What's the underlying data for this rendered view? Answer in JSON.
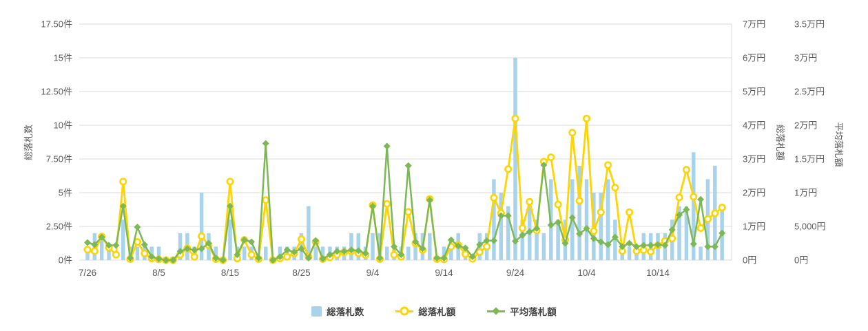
{
  "chart_data": {
    "type": "bar",
    "combo": "bar + two line series on secondary axes",
    "title": "",
    "grid": {
      "horizontal": true,
      "vertical": false,
      "color": "#DBDBDB",
      "right_border_color": "#DBDBDB"
    },
    "background": "#ffffff",
    "axis_label_color": "#595959",
    "categories": [
      "7/26",
      "7/27",
      "7/28",
      "7/29",
      "7/30",
      "7/31",
      "8/1",
      "8/2",
      "8/3",
      "8/4",
      "8/5",
      "8/6",
      "8/7",
      "8/8",
      "8/9",
      "8/10",
      "8/11",
      "8/12",
      "8/13",
      "8/14",
      "8/15",
      "8/16",
      "8/17",
      "8/18",
      "8/19",
      "8/20",
      "8/21",
      "8/22",
      "8/23",
      "8/24",
      "8/25",
      "8/26",
      "8/27",
      "8/28",
      "8/29",
      "8/30",
      "8/31",
      "9/1",
      "9/2",
      "9/3",
      "9/4",
      "9/5",
      "9/6",
      "9/7",
      "9/8",
      "9/9",
      "9/10",
      "9/11",
      "9/12",
      "9/13",
      "9/14",
      "9/15",
      "9/16",
      "9/17",
      "9/18",
      "9/19",
      "9/20",
      "9/21",
      "9/22",
      "9/23",
      "9/24",
      "9/25",
      "9/26",
      "9/27",
      "9/28",
      "9/29",
      "9/30",
      "10/1",
      "10/2",
      "10/3",
      "10/4",
      "10/5",
      "10/6",
      "10/7",
      "10/8",
      "10/9",
      "10/10",
      "10/11",
      "10/12",
      "10/13",
      "10/14",
      "10/15",
      "10/16",
      "10/17",
      "10/18",
      "10/19",
      "10/20",
      "10/21",
      "10/22",
      "10/23"
    ],
    "x_shown_tick_indices": [
      0,
      10,
      20,
      30,
      40,
      50,
      60,
      70,
      80
    ],
    "x_shown_tick_labels": [
      "7/26",
      "8/5",
      "8/15",
      "8/25",
      "9/4",
      "9/14",
      "9/24",
      "10/4",
      "10/14"
    ],
    "axes": {
      "left": {
        "title": "総落札数",
        "unit": "件",
        "min": 0,
        "max": 17.5,
        "tick_labels_bottom_up": [
          "0件",
          "2.50件",
          "5件",
          "7.50件",
          "10件",
          "12.50件",
          "15件",
          "17.50件"
        ]
      },
      "right1": {
        "title": "総落札額",
        "unit": "円",
        "min": 0,
        "max": 70000,
        "tick_labels_bottom_up": [
          "0円",
          "1万円",
          "2万円",
          "3万円",
          "4万円",
          "5万円",
          "6万円",
          "7万円"
        ]
      },
      "right2": {
        "title": "平均落札額",
        "unit": "円",
        "min": 0,
        "max": 35000,
        "tick_labels_bottom_up": [
          "0円",
          "5,000円",
          "1万円",
          "1.5万円",
          "2万円",
          "2.5万円",
          "3万円",
          "3.5万円"
        ]
      }
    },
    "series": [
      {
        "name": "総落札数",
        "type": "bar",
        "axis": "left",
        "color": "#A8D3EA",
        "values": [
          1,
          2,
          2,
          1,
          0,
          3,
          1,
          1,
          1,
          1,
          1,
          0,
          0,
          2,
          2,
          1,
          5,
          2,
          1,
          0,
          3,
          1,
          1,
          1,
          0,
          1,
          0,
          1,
          1,
          1,
          2,
          4,
          1,
          1,
          1,
          1,
          1,
          2,
          2,
          1,
          2,
          2,
          1,
          1,
          1,
          1,
          2,
          2,
          2,
          0,
          1,
          1,
          2,
          1,
          0,
          2,
          2,
          6,
          5,
          4,
          15,
          3,
          4,
          3,
          2,
          6,
          3,
          3,
          6,
          7,
          6,
          5,
          5,
          6,
          3,
          1,
          1,
          1,
          2,
          2,
          2,
          2,
          3,
          4,
          4,
          8,
          1,
          6,
          7,
          4
        ]
      },
      {
        "name": "総落札額",
        "type": "line",
        "marker": "circle",
        "axis": "right1",
        "color": "#FFD400",
        "values": [
          3100,
          2700,
          7000,
          3700,
          1600,
          23300,
          300,
          5400,
          2000,
          500,
          200,
          0,
          0,
          1600,
          3500,
          1000,
          7100,
          4400,
          300,
          0,
          23300,
          500,
          6000,
          1600,
          300,
          17800,
          0,
          500,
          1000,
          2000,
          6200,
          1000,
          5400,
          300,
          800,
          1600,
          2300,
          2600,
          2000,
          1500,
          16300,
          300,
          16700,
          1600,
          1000,
          14300,
          5000,
          3000,
          18100,
          300,
          200,
          4000,
          4500,
          1800,
          400,
          2400,
          4000,
          18500,
          14000,
          27000,
          42000,
          9500,
          17300,
          8800,
          29200,
          30500,
          16500,
          6000,
          37800,
          17600,
          42000,
          8600,
          14200,
          28200,
          21500,
          2700,
          14200,
          2700,
          3000,
          2500,
          4400,
          5700,
          6400,
          18600,
          26800,
          18800,
          9500,
          12200,
          13900,
          15600
        ]
      },
      {
        "name": "平均落札額",
        "type": "line",
        "marker": "diamond",
        "axis": "right2",
        "color": "#7CB855",
        "values": [
          2600,
          2300,
          3400,
          2200,
          2200,
          8000,
          300,
          4900,
          2300,
          500,
          200,
          0,
          0,
          1300,
          1700,
          1500,
          1700,
          2500,
          300,
          0,
          8000,
          800,
          3000,
          2700,
          300,
          17300,
          0,
          500,
          1500,
          1200,
          1700,
          300,
          2900,
          200,
          800,
          1300,
          1300,
          1500,
          1400,
          1000,
          8000,
          300,
          16900,
          2000,
          800,
          14000,
          2700,
          1700,
          8900,
          300,
          300,
          3000,
          2100,
          1800,
          500,
          2300,
          2900,
          2900,
          6600,
          6600,
          2800,
          3700,
          4200,
          4700,
          14100,
          5200,
          5600,
          2500,
          6300,
          3900,
          4700,
          3200,
          2700,
          2300,
          3400,
          2000,
          2500,
          2000,
          2200,
          2200,
          2300,
          2200,
          4500,
          6700,
          7500,
          2400,
          9000,
          2000,
          2000,
          4000
        ]
      }
    ],
    "legend": {
      "position": "bottom-center",
      "items": [
        {
          "label": "総落札数",
          "swatch": "blue-square"
        },
        {
          "label": "総落札額",
          "swatch": "yellow-line-circle"
        },
        {
          "label": "平均落札額",
          "swatch": "green-line-diamond"
        }
      ]
    }
  }
}
